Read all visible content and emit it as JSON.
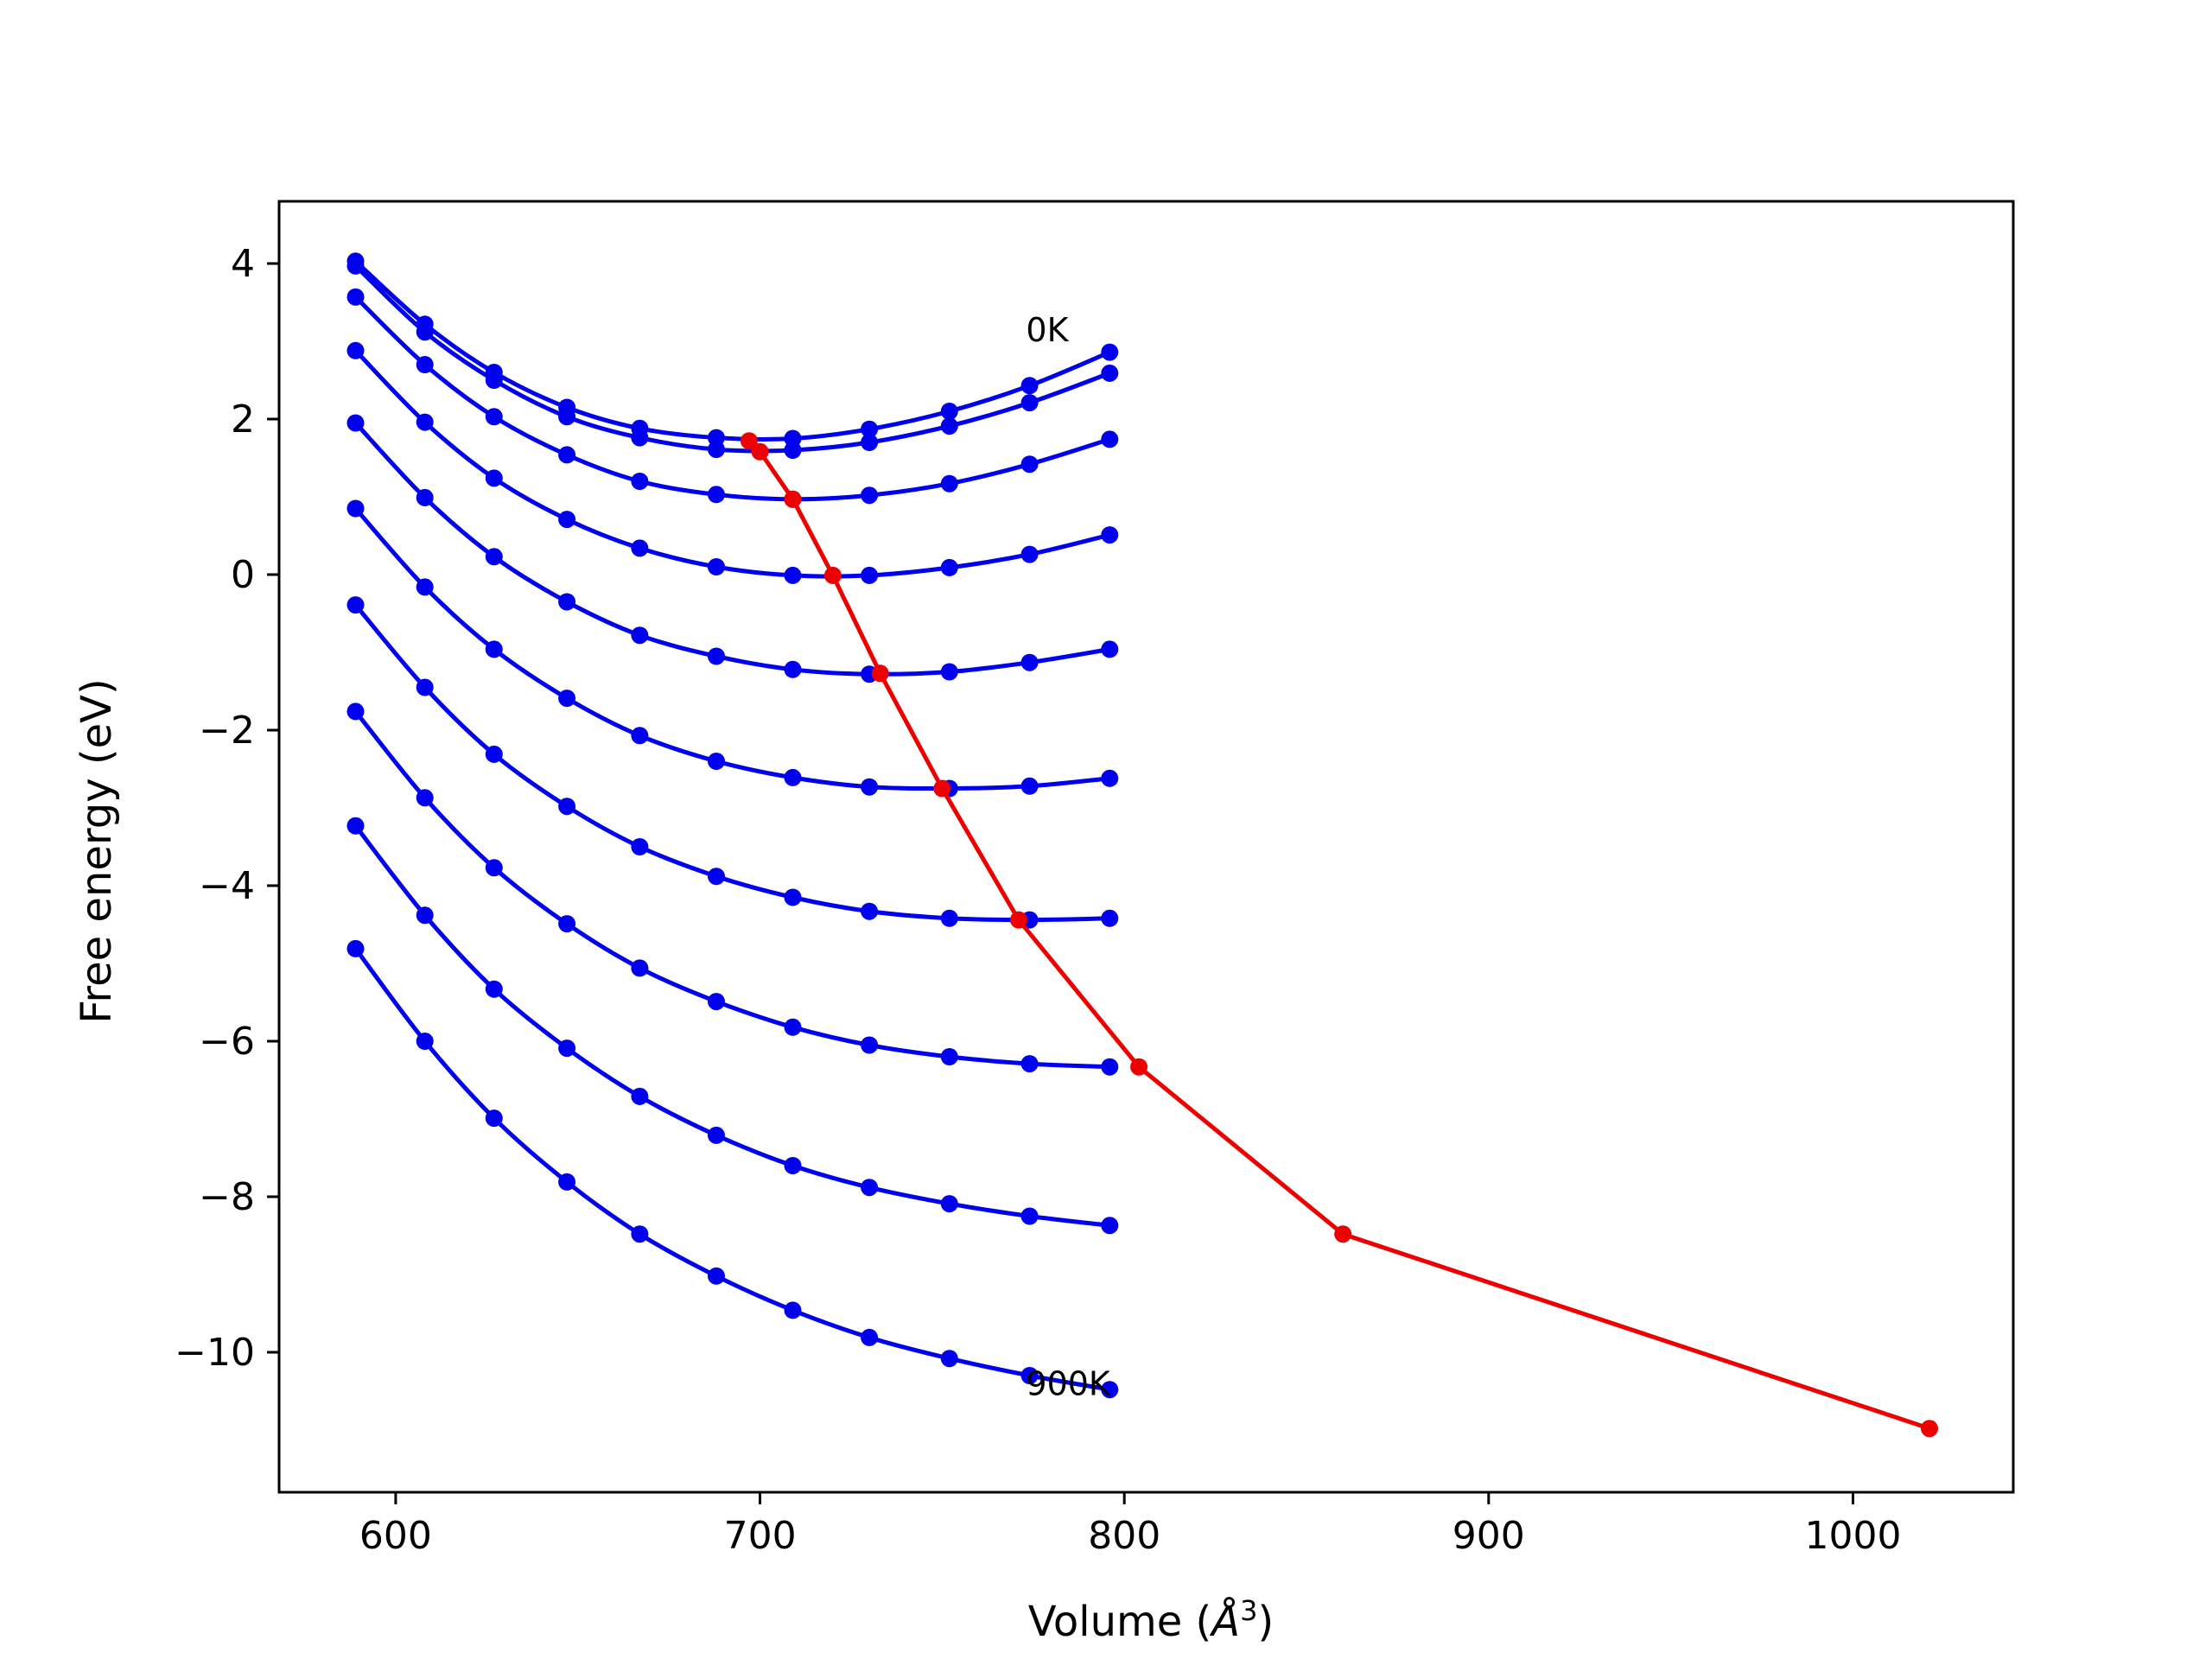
{
  "chart_data": {
    "type": "line",
    "title": "",
    "xlabel": "Volume",
    "xlabel_unit": "Å",
    "xlabel_unit_exponent": "3",
    "ylabel": "Free energy (eV)",
    "xlim": [
      568,
      1044
    ],
    "ylim": [
      -11.8,
      4.8
    ],
    "grid": false,
    "legend": "none",
    "x_ticks": [
      {
        "value": 600,
        "label": "600"
      },
      {
        "value": 700,
        "label": "700"
      },
      {
        "value": 800,
        "label": "800"
      },
      {
        "value": 900,
        "label": "900"
      },
      {
        "value": 1000,
        "label": "1000"
      }
    ],
    "y_ticks": [
      {
        "value": 4,
        "label": "4"
      },
      {
        "value": 2,
        "label": "2"
      },
      {
        "value": 0,
        "label": "0"
      },
      {
        "value": -2,
        "label": "−2"
      },
      {
        "value": -4,
        "label": "−4"
      },
      {
        "value": -6,
        "label": "−6"
      },
      {
        "value": -8,
        "label": "−8"
      },
      {
        "value": -10,
        "label": "−10"
      }
    ],
    "annotations": [
      {
        "text": "0K",
        "x": 773,
        "y": 3.0
      },
      {
        "text": "900K",
        "x": 773,
        "y": -10.55
      }
    ],
    "colors": {
      "curves": "#0000ee",
      "minima": "#ee0000",
      "axes": "#000000"
    },
    "x": [
      589,
      608,
      627,
      647,
      667,
      688,
      709,
      730,
      752,
      774,
      796
    ],
    "series": [
      {
        "values": [
          4.03,
          3.22,
          2.6,
          2.15,
          1.88,
          1.76,
          1.75,
          1.87,
          2.1,
          2.43,
          2.86
        ]
      },
      {
        "values": [
          3.97,
          3.12,
          2.5,
          2.03,
          1.76,
          1.61,
          1.6,
          1.7,
          1.91,
          2.21,
          2.59
        ]
      },
      {
        "values": [
          3.57,
          2.7,
          2.03,
          1.54,
          1.2,
          1.03,
          0.97,
          1.02,
          1.17,
          1.42,
          1.74
        ]
      },
      {
        "values": [
          2.88,
          1.96,
          1.24,
          0.71,
          0.34,
          0.1,
          -0.01,
          -0.01,
          0.09,
          0.26,
          0.51
        ]
      },
      {
        "values": [
          1.95,
          0.99,
          0.23,
          -0.35,
          -0.78,
          -1.05,
          -1.22,
          -1.28,
          -1.25,
          -1.13,
          -0.96
        ]
      },
      {
        "values": [
          0.85,
          -0.16,
          -0.96,
          -1.59,
          -2.07,
          -2.4,
          -2.61,
          -2.73,
          -2.75,
          -2.72,
          -2.62
        ]
      },
      {
        "values": [
          -0.39,
          -1.45,
          -2.31,
          -2.98,
          -3.5,
          -3.88,
          -4.15,
          -4.33,
          -4.42,
          -4.44,
          -4.42
        ]
      },
      {
        "values": [
          -1.76,
          -2.87,
          -3.77,
          -4.49,
          -5.06,
          -5.49,
          -5.82,
          -6.05,
          -6.2,
          -6.29,
          -6.33
        ]
      },
      {
        "values": [
          -3.23,
          -4.38,
          -5.33,
          -6.09,
          -6.71,
          -7.21,
          -7.6,
          -7.88,
          -8.09,
          -8.25,
          -8.37
        ]
      },
      {
        "values": [
          -4.81,
          -6.0,
          -6.99,
          -7.81,
          -8.48,
          -9.02,
          -9.46,
          -9.81,
          -10.08,
          -10.3,
          -10.48
        ]
      }
    ],
    "minima": {
      "x": [
        697,
        700,
        709,
        720,
        733,
        750,
        771,
        804,
        860,
        1021
      ],
      "y": [
        1.72,
        1.58,
        0.97,
        -0.01,
        -1.27,
        -2.75,
        -4.44,
        -6.33,
        -8.48,
        -10.98
      ]
    }
  }
}
